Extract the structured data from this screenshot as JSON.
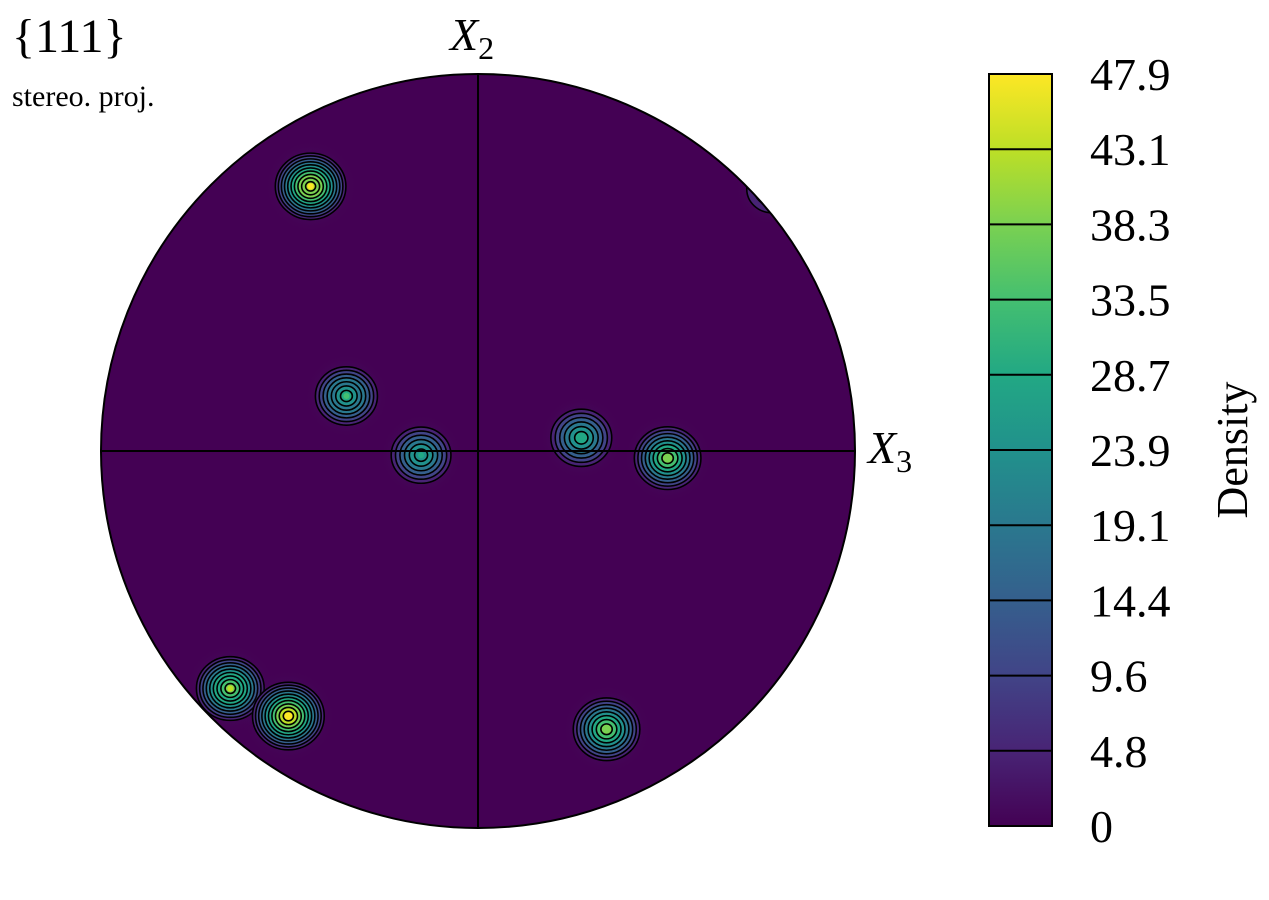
{
  "chart_data": {
    "type": "heatmap",
    "projection_label": "stereo. proj.",
    "plane_family": "{111}",
    "axis_labels": {
      "top": {
        "base": "X",
        "subscript": "2"
      },
      "right": {
        "base": "X",
        "subscript": "3"
      }
    },
    "colorbar": {
      "label": "Density",
      "ticks": [
        "0",
        "4.8",
        "9.6",
        "14.4",
        "19.1",
        "23.9",
        "28.7",
        "33.5",
        "38.3",
        "43.1",
        "47.9"
      ],
      "range": [
        0,
        47.9
      ],
      "colormap": [
        "#440154",
        "#482475",
        "#414487",
        "#355f8d",
        "#2a788e",
        "#21918c",
        "#22a884",
        "#44bf70",
        "#7ad151",
        "#bddf26",
        "#fde725"
      ]
    },
    "poles": [
      {
        "x": -0.444,
        "y": 0.702,
        "peak": 45
      },
      {
        "x": -0.349,
        "y": 0.146,
        "peak": 30
      },
      {
        "x": -0.151,
        "y": -0.011,
        "peak": 26
      },
      {
        "x": 0.274,
        "y": 0.035,
        "peak": 28
      },
      {
        "x": 0.503,
        "y": -0.019,
        "peak": 38
      },
      {
        "x": -0.657,
        "y": -0.63,
        "peak": 40
      },
      {
        "x": -0.503,
        "y": -0.703,
        "peak": 47
      },
      {
        "x": 0.341,
        "y": -0.738,
        "peak": 38
      },
      {
        "x": 0.78,
        "y": 0.695,
        "peak": 10
      }
    ],
    "background_density": 0,
    "grid": false
  }
}
